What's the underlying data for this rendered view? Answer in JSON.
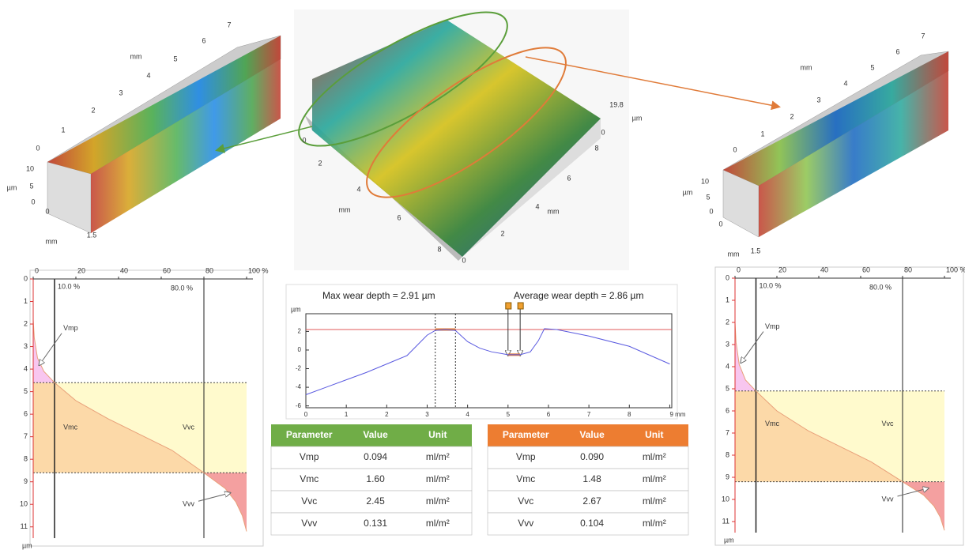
{
  "surfaces": {
    "left": {
      "labels": [
        "0",
        "1",
        "2",
        "3",
        "4",
        "5",
        "6",
        "7",
        "mm",
        "10",
        "5",
        "0",
        "µm",
        "0",
        "1.5",
        "mm"
      ]
    },
    "center": {
      "labels": [
        "19.8",
        "µm",
        "0",
        "0",
        "2",
        "4",
        "6",
        "8",
        "mm",
        "8",
        "6",
        "4",
        "2",
        "0",
        "mm"
      ]
    },
    "right": {
      "labels": [
        "0",
        "1",
        "2",
        "3",
        "4",
        "5",
        "6",
        "7",
        "mm",
        "10",
        "5",
        "0",
        "µm",
        "0",
        "1.5",
        "mm"
      ]
    }
  },
  "profile": {
    "title_left": "Max wear depth = 2.91 µm",
    "title_right": "Average wear depth = 2.86 µm",
    "y_unit": "µm",
    "xlim": [
      0,
      9.05
    ],
    "xticks": [
      0,
      1,
      2,
      3,
      4,
      5,
      6,
      7,
      8,
      {
        "value": 9,
        "label": "9 mm"
      }
    ],
    "ylim": [
      -6.2,
      3.9
    ],
    "yticks": [
      -6,
      -4,
      -2,
      0,
      2
    ],
    "x": [
      0,
      0.5,
      1,
      1.5,
      2,
      2.5,
      3,
      3.2,
      3.45,
      3.7,
      4,
      4.3,
      4.6,
      5,
      5.3,
      5.55,
      5.75,
      5.9,
      6.2,
      7,
      8,
      9
    ],
    "y": [
      -4.8,
      -4.0,
      -3.2,
      -2.4,
      -1.5,
      -0.6,
      1.6,
      2.1,
      2.2,
      2.1,
      0.9,
      0.2,
      -0.2,
      -0.5,
      -0.5,
      -0.2,
      1.0,
      2.3,
      2.2,
      1.5,
      0.4,
      -1.5
    ],
    "reference_level": 2.2,
    "max_zone": [
      3.2,
      3.7
    ],
    "avg_markers": [
      5,
      5.3
    ]
  },
  "abbott_left": {
    "xlim": [
      0,
      100
    ],
    "xticks": [
      0,
      20,
      40,
      60,
      80,
      {
        "value": 100,
        "label": "100 %"
      }
    ],
    "ylim": [
      0,
      11.5
    ],
    "yticks": [
      0,
      1,
      2,
      3,
      4,
      5,
      6,
      7,
      8,
      9,
      10,
      11
    ],
    "y_unit": "µm",
    "mr1": 10,
    "mr1_label": "10.0 %",
    "mr2": 80,
    "mr2_label": "80.0 %",
    "level1": 4.6,
    "level2": 8.6,
    "mr": [
      0,
      0.5,
      2,
      5,
      10,
      20,
      35,
      50,
      65,
      80,
      90,
      95,
      98,
      100
    ],
    "depth": [
      1.8,
      2.6,
      3.5,
      4.1,
      4.6,
      5.4,
      6.2,
      6.9,
      7.6,
      8.6,
      9.3,
      9.9,
      10.5,
      11.2
    ],
    "labels": [
      "Vmp",
      "Vmc",
      "Vvc",
      "Vvv"
    ]
  },
  "abbott_right": {
    "xlim": [
      0,
      100
    ],
    "xticks": [
      0,
      20,
      40,
      60,
      80,
      {
        "value": 100,
        "label": "100 %"
      }
    ],
    "ylim": [
      0,
      11.5
    ],
    "yticks": [
      0,
      1,
      2,
      3,
      4,
      5,
      6,
      7,
      8,
      9,
      10,
      11
    ],
    "y_unit": "µm",
    "mr1": 10,
    "mr1_label": "10.0 %",
    "mr2": 80,
    "mr2_label": "80.0 %",
    "level1": 5.1,
    "level2": 9.2,
    "mr": [
      0,
      0.5,
      2,
      5,
      10,
      20,
      35,
      50,
      65,
      80,
      90,
      95,
      98,
      100
    ],
    "depth": [
      2.0,
      2.9,
      3.9,
      4.6,
      5.1,
      6.0,
      6.9,
      7.6,
      8.3,
      9.2,
      9.8,
      10.3,
      10.8,
      11.4
    ],
    "labels": [
      "Vmp",
      "Vmc",
      "Vvc",
      "Vvv"
    ]
  },
  "tables": {
    "left": {
      "color": "#70ad47",
      "header": [
        "Parameter",
        "Value",
        "Unit"
      ],
      "rows": [
        [
          "Vmp",
          "0.094",
          "ml/m²"
        ],
        [
          "Vmc",
          "1.60",
          "ml/m²"
        ],
        [
          "Vvc",
          "2.45",
          "ml/m²"
        ],
        [
          "Vvv",
          "0.131",
          "ml/m²"
        ]
      ]
    },
    "right": {
      "color": "#ed7d31",
      "header": [
        "Parameter",
        "Value",
        "Unit"
      ],
      "rows": [
        [
          "Vmp",
          "0.090",
          "ml/m²"
        ],
        [
          "Vmc",
          "1.48",
          "ml/m²"
        ],
        [
          "Vvc",
          "2.67",
          "ml/m²"
        ],
        [
          "Vvv",
          "0.104",
          "ml/m²"
        ]
      ]
    }
  }
}
